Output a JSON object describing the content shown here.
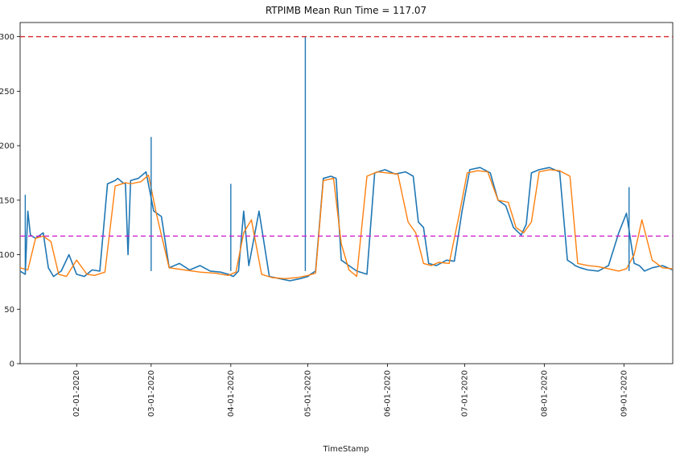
{
  "chart_data": {
    "type": "line",
    "title": "RTPIMB Mean Run Time = 117.07",
    "xlabel": "TimeStamp",
    "ylabel": "",
    "ylim": [
      0,
      313
    ],
    "xlim": [
      "2020-01-10",
      "2020-09-20"
    ],
    "yticks": [
      0,
      50,
      100,
      150,
      200,
      250,
      300
    ],
    "xticks": [
      "02-01-2020",
      "03-01-2020",
      "04-01-2020",
      "05-01-2020",
      "06-01-2020",
      "07-01-2020",
      "08-01-2020",
      "09-01-2020"
    ],
    "reference_lines": [
      {
        "y": 300,
        "color": "#d62728",
        "style": "dashed"
      },
      {
        "y": 117.07,
        "color": "#d020d0",
        "style": "dashed"
      }
    ],
    "series": [
      {
        "role": "raw",
        "color": "#1f77b4",
        "x": [
          "2020-01-10",
          "2020-01-12",
          "2020-01-13",
          "2020-01-14",
          "2020-01-16",
          "2020-01-19",
          "2020-01-21",
          "2020-01-23",
          "2020-01-26",
          "2020-01-29",
          "2020-02-01",
          "2020-02-04",
          "2020-02-07",
          "2020-02-10",
          "2020-02-13",
          "2020-02-16",
          "2020-02-17",
          "2020-02-19",
          "2020-02-20",
          "2020-02-21",
          "2020-02-22",
          "2020-02-25",
          "2020-02-28",
          "2020-03-02",
          "2020-03-05",
          "2020-03-08",
          "2020-03-12",
          "2020-03-16",
          "2020-03-20",
          "2020-03-24",
          "2020-03-28",
          "2020-03-31",
          "2020-04-02",
          "2020-04-04",
          "2020-04-06",
          "2020-04-08",
          "2020-04-12",
          "2020-04-16",
          "2020-04-20",
          "2020-04-24",
          "2020-04-28",
          "2020-05-01",
          "2020-05-02",
          "2020-05-04",
          "2020-05-07",
          "2020-05-10",
          "2020-05-12",
          "2020-05-14",
          "2020-05-17",
          "2020-05-20",
          "2020-05-24",
          "2020-05-27",
          "2020-05-31",
          "2020-06-04",
          "2020-06-08",
          "2020-06-11",
          "2020-06-13",
          "2020-06-15",
          "2020-06-17",
          "2020-06-20",
          "2020-06-24",
          "2020-06-27",
          "2020-06-30",
          "2020-07-03",
          "2020-07-07",
          "2020-07-11",
          "2020-07-14",
          "2020-07-17",
          "2020-07-20",
          "2020-07-23",
          "2020-07-25",
          "2020-07-27",
          "2020-07-30",
          "2020-08-03",
          "2020-08-07",
          "2020-08-10",
          "2020-08-12",
          "2020-08-13",
          "2020-08-15",
          "2020-08-18",
          "2020-08-22",
          "2020-08-26",
          "2020-08-30",
          "2020-09-02",
          "2020-09-05",
          "2020-09-07",
          "2020-09-09",
          "2020-09-12",
          "2020-09-16",
          "2020-09-20"
        ],
        "y": [
          85,
          82,
          140,
          118,
          115,
          120,
          88,
          80,
          85,
          100,
          82,
          80,
          86,
          85,
          165,
          168,
          170,
          166,
          165,
          100,
          168,
          170,
          176,
          140,
          135,
          88,
          92,
          86,
          90,
          85,
          84,
          82,
          80,
          85,
          140,
          90,
          140,
          80,
          78,
          76,
          78,
          80,
          82,
          85,
          170,
          172,
          170,
          95,
          90,
          85,
          82,
          175,
          178,
          174,
          176,
          172,
          130,
          125,
          92,
          90,
          95,
          94,
          140,
          178,
          180,
          175,
          150,
          145,
          125,
          118,
          128,
          175,
          178,
          180,
          176,
          95,
          92,
          90,
          88,
          86,
          85,
          90,
          120,
          138,
          92,
          90,
          85,
          88,
          90,
          86
        ]
      },
      {
        "role": "smoothed",
        "color": "#ff7f0e",
        "x": [
          "2020-01-10",
          "2020-01-13",
          "2020-01-16",
          "2020-01-19",
          "2020-01-22",
          "2020-01-25",
          "2020-01-28",
          "2020-02-01",
          "2020-02-05",
          "2020-02-08",
          "2020-02-12",
          "2020-02-16",
          "2020-02-20",
          "2020-02-22",
          "2020-02-26",
          "2020-02-29",
          "2020-03-03",
          "2020-03-08",
          "2020-03-14",
          "2020-03-20",
          "2020-03-26",
          "2020-03-31",
          "2020-04-03",
          "2020-04-06",
          "2020-04-09",
          "2020-04-13",
          "2020-04-17",
          "2020-04-22",
          "2020-04-27",
          "2020-05-01",
          "2020-05-04",
          "2020-05-07",
          "2020-05-11",
          "2020-05-14",
          "2020-05-17",
          "2020-05-20",
          "2020-05-24",
          "2020-05-28",
          "2020-06-01",
          "2020-06-05",
          "2020-06-09",
          "2020-06-12",
          "2020-06-15",
          "2020-06-18",
          "2020-06-21",
          "2020-06-25",
          "2020-06-29",
          "2020-07-02",
          "2020-07-06",
          "2020-07-10",
          "2020-07-14",
          "2020-07-18",
          "2020-07-21",
          "2020-07-24",
          "2020-07-27",
          "2020-07-30",
          "2020-08-03",
          "2020-08-07",
          "2020-08-11",
          "2020-08-14",
          "2020-08-18",
          "2020-08-22",
          "2020-08-26",
          "2020-08-30",
          "2020-09-02",
          "2020-09-05",
          "2020-09-08",
          "2020-09-12",
          "2020-09-16",
          "2020-09-20"
        ],
        "y": [
          88,
          86,
          115,
          117,
          112,
          82,
          80,
          95,
          82,
          81,
          84,
          163,
          166,
          165,
          167,
          173,
          138,
          88,
          86,
          84,
          83,
          81,
          84,
          120,
          132,
          82,
          79,
          78,
          79,
          81,
          83,
          168,
          170,
          110,
          86,
          80,
          172,
          176,
          175,
          174,
          130,
          120,
          92,
          90,
          93,
          92,
          138,
          175,
          177,
          176,
          150,
          148,
          125,
          120,
          130,
          176,
          178,
          177,
          172,
          92,
          90,
          89,
          87,
          85,
          87,
          100,
          132,
          95,
          88,
          87
        ]
      }
    ],
    "spikes": [
      {
        "x": "2020-01-12",
        "y": 155
      },
      {
        "x": "2020-03-01",
        "y": 208
      },
      {
        "x": "2020-04-01",
        "y": 165
      },
      {
        "x": "2020-04-30",
        "y": 300
      },
      {
        "x": "2020-09-03",
        "y": 162
      }
    ]
  }
}
